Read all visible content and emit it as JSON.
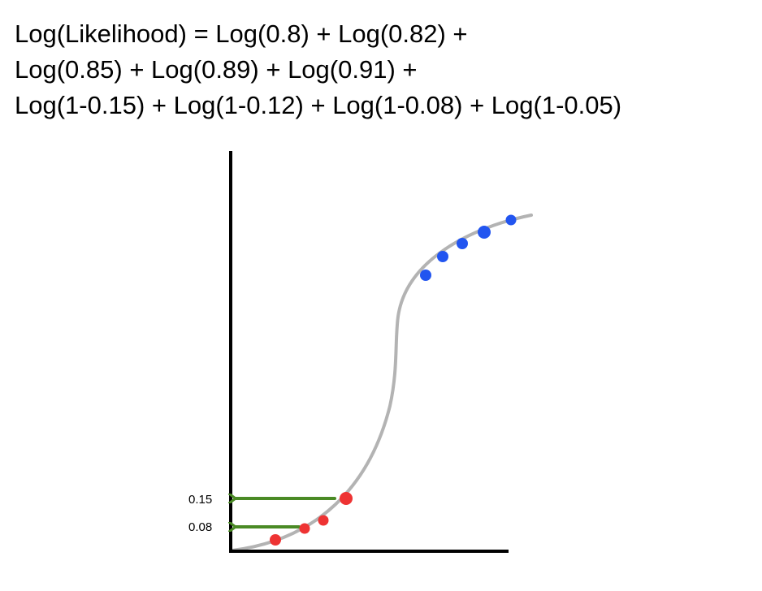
{
  "equation": {
    "lines": [
      "Log(Likelihood) = Log(0.8) + Log(0.82) +",
      "Log(0.85) + Log(0.89) + Log(0.91) +",
      "Log(1-0.15) + Log(1-0.12) + Log(1-0.08) + Log(1-0.05)"
    ]
  },
  "diagram": {
    "tick_labels": [
      "0.15",
      "0.08"
    ],
    "colors": {
      "axis": "#000000",
      "curve": "#b3b3b3",
      "positive_points": "#2255f0",
      "negative_points": "#ee3333",
      "arrows": "#4a8a25"
    },
    "positive_point_probabilities": [
      0.8,
      0.82,
      0.85,
      0.89,
      0.91
    ],
    "negative_point_probabilities": [
      0.15,
      0.12,
      0.08,
      0.05
    ]
  }
}
